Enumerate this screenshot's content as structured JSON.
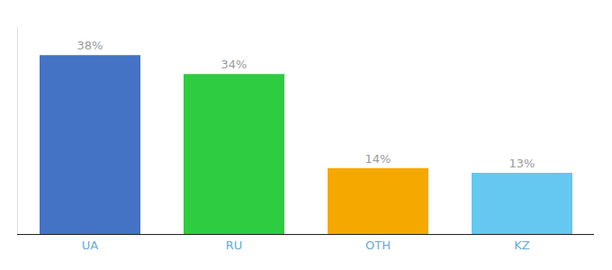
{
  "chart_data": {
    "type": "bar",
    "categories": [
      "UA",
      "RU",
      "OTH",
      "KZ"
    ],
    "values": [
      38,
      34,
      14,
      13
    ],
    "value_labels": [
      "38%",
      "34%",
      "14%",
      "13%"
    ],
    "colors": [
      "#4472c4",
      "#2ecc40",
      "#f5a800",
      "#64c8f0"
    ],
    "ylim": [
      0,
      44
    ],
    "data_labels": true,
    "tick_labels": "x",
    "grid": false
  }
}
